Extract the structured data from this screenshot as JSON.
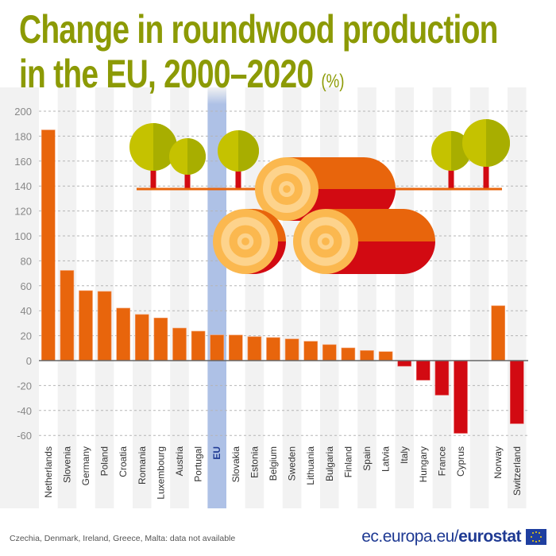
{
  "title_line1": "Change in roundwood production",
  "title_line2": "in the EU, 2000–2020",
  "unit": "(%)",
  "note": "Czechia, Denmark, Ireland, Greece, Malta: data not available",
  "site_prefix": "ec.europa.eu/",
  "site_brand": "eurostat",
  "colors": {
    "positive": "#e8650c",
    "negative": "#d20a12",
    "eu_highlight": "#aec1e6",
    "title": "#8c9a05",
    "eu_label": "#1f3a93"
  },
  "chart_data": {
    "type": "bar",
    "title": "Change in roundwood production in the EU, 2000–2020",
    "unit": "%",
    "ylim": [
      -60,
      200
    ],
    "yticks": [
      -60,
      -40,
      -20,
      0,
      20,
      40,
      60,
      80,
      100,
      120,
      140,
      160,
      180,
      200
    ],
    "grid": true,
    "highlight": "EU",
    "categories": [
      "Netherlands",
      "Slovenia",
      "Germany",
      "Poland",
      "Croatia",
      "Romania",
      "Luxembourg",
      "Austria",
      "Portugal",
      "EU",
      "Slovakia",
      "Estonia",
      "Belgium",
      "Sweden",
      "Lithuania",
      "Bulgaria",
      "Finland",
      "Spain",
      "Latvia",
      "Italy",
      "Hungary",
      "France",
      "Cyprus",
      "Norway",
      "Switzerland"
    ],
    "values": [
      185,
      72.3,
      56.1,
      55.5,
      42.1,
      37,
      34.2,
      26.1,
      23.6,
      20.6,
      20.5,
      19.2,
      18.5,
      17.4,
      15.5,
      12.8,
      10.2,
      8.1,
      7.2,
      -4.5,
      -15.7,
      -27.7,
      -58.3,
      44,
      -50.6
    ]
  }
}
